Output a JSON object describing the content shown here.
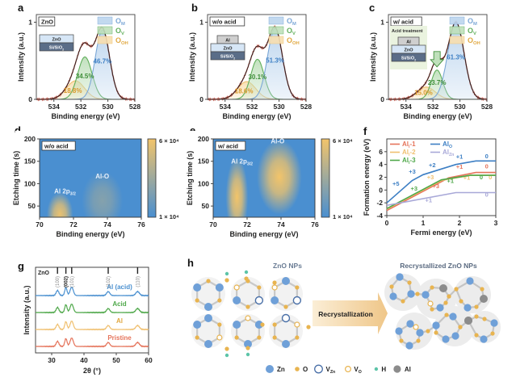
{
  "colors": {
    "lattice": "#7ba7d6",
    "vacancy": "#7ba7d6",
    "green": "#4fa84a",
    "orange": "#f0c070",
    "blue_map": "#4a8fd0",
    "yellow_map": "#f2c46a",
    "fit": "#222222",
    "raw": "#c0392b",
    "red": "#e5735a",
    "lavender": "#a8a8d8",
    "O_atom": "#e8b450",
    "H_atom": "#5cc4a8",
    "Al_atom": "#8c8c8c",
    "Zn_atom": "#6fa0d8"
  },
  "chart_data": [
    {
      "id": "a",
      "panel_letter": "a",
      "type": "area",
      "title": "ZnO",
      "xlabel": "Binding energy (eV)",
      "ylabel": "Intensity (a.u.)",
      "xlim": [
        535.3,
        528
      ],
      "ylim": [
        0,
        1.1
      ],
      "xticks": [
        534,
        532,
        530,
        528
      ],
      "yticks": [
        0,
        1
      ],
      "legend": [
        "O_M",
        "O_V",
        "O_OH"
      ],
      "legend_position": "top-right",
      "stack_layers": [
        "ZnO",
        "Si/SiO2"
      ],
      "series": [
        {
          "name": "O_M",
          "center": 530.4,
          "height": 0.9,
          "width": 0.75,
          "label": "46.7%"
        },
        {
          "name": "O_V",
          "center": 531.7,
          "height": 0.55,
          "width": 0.75,
          "label": "34.5%"
        },
        {
          "name": "O_OH",
          "center": 532.4,
          "height": 0.24,
          "width": 0.95,
          "label": "18.8%"
        }
      ]
    },
    {
      "id": "b",
      "panel_letter": "b",
      "type": "area",
      "title": "w/o acid",
      "xlabel": "Binding energy (eV)",
      "ylabel": "Intensity (a.u.)",
      "xlim": [
        535.3,
        528
      ],
      "ylim": [
        0,
        1.1
      ],
      "xticks": [
        534,
        532,
        530,
        528
      ],
      "yticks": [
        0,
        1
      ],
      "legend": [
        "O_M",
        "O_V",
        "O_OH"
      ],
      "legend_position": "top-right",
      "stack_layers": [
        "Al",
        "ZnO",
        "Si/SiO2"
      ],
      "series": [
        {
          "name": "O_M",
          "center": 530.3,
          "height": 0.92,
          "width": 0.78,
          "label": "51.3%"
        },
        {
          "name": "O_V",
          "center": 531.6,
          "height": 0.52,
          "width": 0.7,
          "label": "30.1%"
        },
        {
          "name": "O_OH",
          "center": 532.4,
          "height": 0.23,
          "width": 0.95,
          "label": "18.6%"
        }
      ]
    },
    {
      "id": "c",
      "panel_letter": "c",
      "type": "area",
      "title": "w/ acid",
      "xlabel": "Binding energy (eV)",
      "ylabel": "Intensity (a.u.)",
      "xlim": [
        535.3,
        528
      ],
      "ylim": [
        0,
        1.1
      ],
      "xticks": [
        534,
        532,
        530,
        528
      ],
      "yticks": [
        0,
        1
      ],
      "legend": [
        "O_M",
        "O_V",
        "O_OH"
      ],
      "legend_position": "top-right",
      "stack_layers_title": "Acid treatment",
      "stack_layers": [
        "Al",
        "ZnO",
        "Si/SiO2"
      ],
      "series": [
        {
          "name": "O_M",
          "center": 530.3,
          "height": 1.0,
          "width": 0.85,
          "label": "61.3%"
        },
        {
          "name": "O_V",
          "center": 531.7,
          "height": 0.38,
          "width": 0.6,
          "label": "23.7%"
        },
        {
          "name": "O_OH",
          "center": 532.5,
          "height": 0.16,
          "width": 0.95,
          "label": "15.0%"
        }
      ]
    },
    {
      "id": "d",
      "panel_letter": "d",
      "type": "heatmap",
      "title": "w/o acid",
      "xlabel": "Binding energy (eV)",
      "ylabel": "Etching time (s)",
      "xlim": [
        70,
        76
      ],
      "ylim": [
        25,
        200
      ],
      "xticks": [
        70,
        72,
        74,
        76
      ],
      "yticks": [
        50,
        100,
        150,
        200
      ],
      "colorbar": {
        "min_label": "1 × 10⁴",
        "max_label": "6 × 10⁴"
      },
      "annotations": [
        {
          "text": "Al-O",
          "x": 73.7,
          "y": 112
        },
        {
          "text": "Al 2p3/2",
          "x": 71.5,
          "y": 78
        }
      ],
      "peaks": [
        {
          "x": 71.2,
          "y": 32,
          "sx": 0.35,
          "sy": 22,
          "amp": 0.95
        },
        {
          "x": 73.7,
          "y": 62,
          "sx": 0.55,
          "sy": 30,
          "amp": 0.35
        }
      ]
    },
    {
      "id": "e",
      "panel_letter": "e",
      "type": "heatmap",
      "title": "w/ acid",
      "xlabel": "Binding energy (eV)",
      "ylabel": "Etching time (s)",
      "xlim": [
        70,
        76
      ],
      "ylim": [
        25,
        200
      ],
      "xticks": [
        70,
        72,
        74,
        76
      ],
      "yticks": [
        50,
        100,
        150,
        200
      ],
      "colorbar": {
        "min_label": "1 × 10⁴",
        "max_label": "6 × 10⁴"
      },
      "annotations": [
        {
          "text": "Al-O",
          "x": 73.8,
          "y": 190
        },
        {
          "text": "Al 2p3/2",
          "x": 71.7,
          "y": 145
        }
      ],
      "peaks": [
        {
          "x": 71.4,
          "y": 70,
          "sx": 0.3,
          "sy": 40,
          "amp": 1.0
        },
        {
          "x": 73.9,
          "y": 115,
          "sx": 0.6,
          "sy": 38,
          "amp": 1.0
        }
      ]
    },
    {
      "id": "f",
      "panel_letter": "f",
      "type": "line",
      "xlabel": "Fermi energy (eV)",
      "ylabel": "Formation energy (eV)",
      "xlim": [
        0,
        3
      ],
      "ylim": [
        -4,
        8
      ],
      "xticks": [
        0,
        1,
        2,
        3
      ],
      "yticks": [
        -4,
        -2,
        0,
        2,
        4,
        6
      ],
      "legend_position": "top-left",
      "series": [
        {
          "name": "Al_i-1",
          "color": "#e5735a",
          "x": [
            0,
            1.7,
            2.45,
            3
          ],
          "y": [
            -3.2,
            1.9,
            2.75,
            2.75
          ],
          "labels": [
            {
              "text": "+3",
              "x": 1.35,
              "y": 0.3
            },
            {
              "text": "+1",
              "x": 2.0,
              "y": 3.3
            },
            {
              "text": "0",
              "x": 2.75,
              "y": 3.4
            }
          ]
        },
        {
          "name": "Al_i-2",
          "color": "#f0c070",
          "x": [
            0,
            1.5,
            2.3,
            3
          ],
          "y": [
            -3.0,
            1.5,
            2.3,
            2.3
          ],
          "labels": [
            {
              "text": "+3",
              "x": 1.2,
              "y": 1.7
            },
            {
              "text": "+1",
              "x": 2.2,
              "y": 1.6
            },
            {
              "text": "0",
              "x": 2.85,
              "y": 1.7
            }
          ]
        },
        {
          "name": "Al_i-3",
          "color": "#4fa84a",
          "x": [
            0,
            1.5,
            2.3,
            3
          ],
          "y": [
            -2.9,
            1.6,
            2.3,
            2.3
          ],
          "labels": [
            {
              "text": "+3",
              "x": 0.75,
              "y": -0.1
            },
            {
              "text": "+1",
              "x": 1.75,
              "y": 1.1
            },
            {
              "text": "0",
              "x": 2.6,
              "y": 1.7
            }
          ]
        },
        {
          "name": "Al_O",
          "color": "#3d7fc4",
          "x": [
            0,
            0.7,
            1.0,
            1.9,
            2.45,
            3
          ],
          "y": [
            -2.0,
            1.5,
            2.4,
            4.0,
            4.55,
            4.55
          ],
          "labels": [
            {
              "text": "+5",
              "x": 0.25,
              "y": 0.7
            },
            {
              "text": "+3",
              "x": 0.7,
              "y": 2.6
            },
            {
              "text": "+2",
              "x": 1.25,
              "y": 3.6
            },
            {
              "text": "+1",
              "x": 2.0,
              "y": 4.9
            },
            {
              "text": "0",
              "x": 2.75,
              "y": 5.0
            }
          ]
        },
        {
          "name": "Al_Zn",
          "color": "#a8a8d8",
          "x": [
            0,
            1.9,
            3
          ],
          "y": [
            -2.4,
            -0.4,
            -0.4
          ],
          "labels": [
            {
              "text": "+1",
              "x": 1.15,
              "y": -1.9
            },
            {
              "text": "0",
              "x": 2.75,
              "y": -1.0
            }
          ]
        }
      ]
    },
    {
      "id": "g",
      "panel_letter": "g",
      "type": "line",
      "xlabel": "2θ (°)",
      "ylabel": "Intensity (a.u.)",
      "xlim": [
        25,
        60
      ],
      "xticks": [
        30,
        40,
        50,
        60
      ],
      "reference": "ZnO",
      "reference_peaks": [
        {
          "hkl": "(100)",
          "x": 31.8
        },
        {
          "hkl": "(002)",
          "x": 34.4
        },
        {
          "hkl": "(101)",
          "x": 36.2
        },
        {
          "hkl": "(102)",
          "x": 47.5
        },
        {
          "hkl": "(110)",
          "x": 56.6
        }
      ],
      "series": [
        {
          "name": "Al (acid)",
          "color": "#4a90d0",
          "offset": 3
        },
        {
          "name": "Acid",
          "color": "#4fa84a",
          "offset": 2
        },
        {
          "name": "Al",
          "color": "#f0c070",
          "offset": 1
        },
        {
          "name": "Pristine",
          "color": "#e5735a",
          "offset": 0
        }
      ]
    }
  ],
  "panel_h": {
    "letter": "h",
    "left_title": "ZnO NPs",
    "right_title": "Recrystallized ZnO NPs",
    "arrow_label": "Recrystallization",
    "legend": [
      {
        "symbol": "Zn",
        "label": "Zn"
      },
      {
        "symbol": "O",
        "label": "O"
      },
      {
        "symbol": "V_Zn",
        "label": "V",
        "sub": "Zn"
      },
      {
        "symbol": "V_O",
        "label": "V",
        "sub": "O"
      },
      {
        "symbol": "H",
        "label": "H"
      },
      {
        "symbol": "Al",
        "label": "Al"
      }
    ]
  }
}
